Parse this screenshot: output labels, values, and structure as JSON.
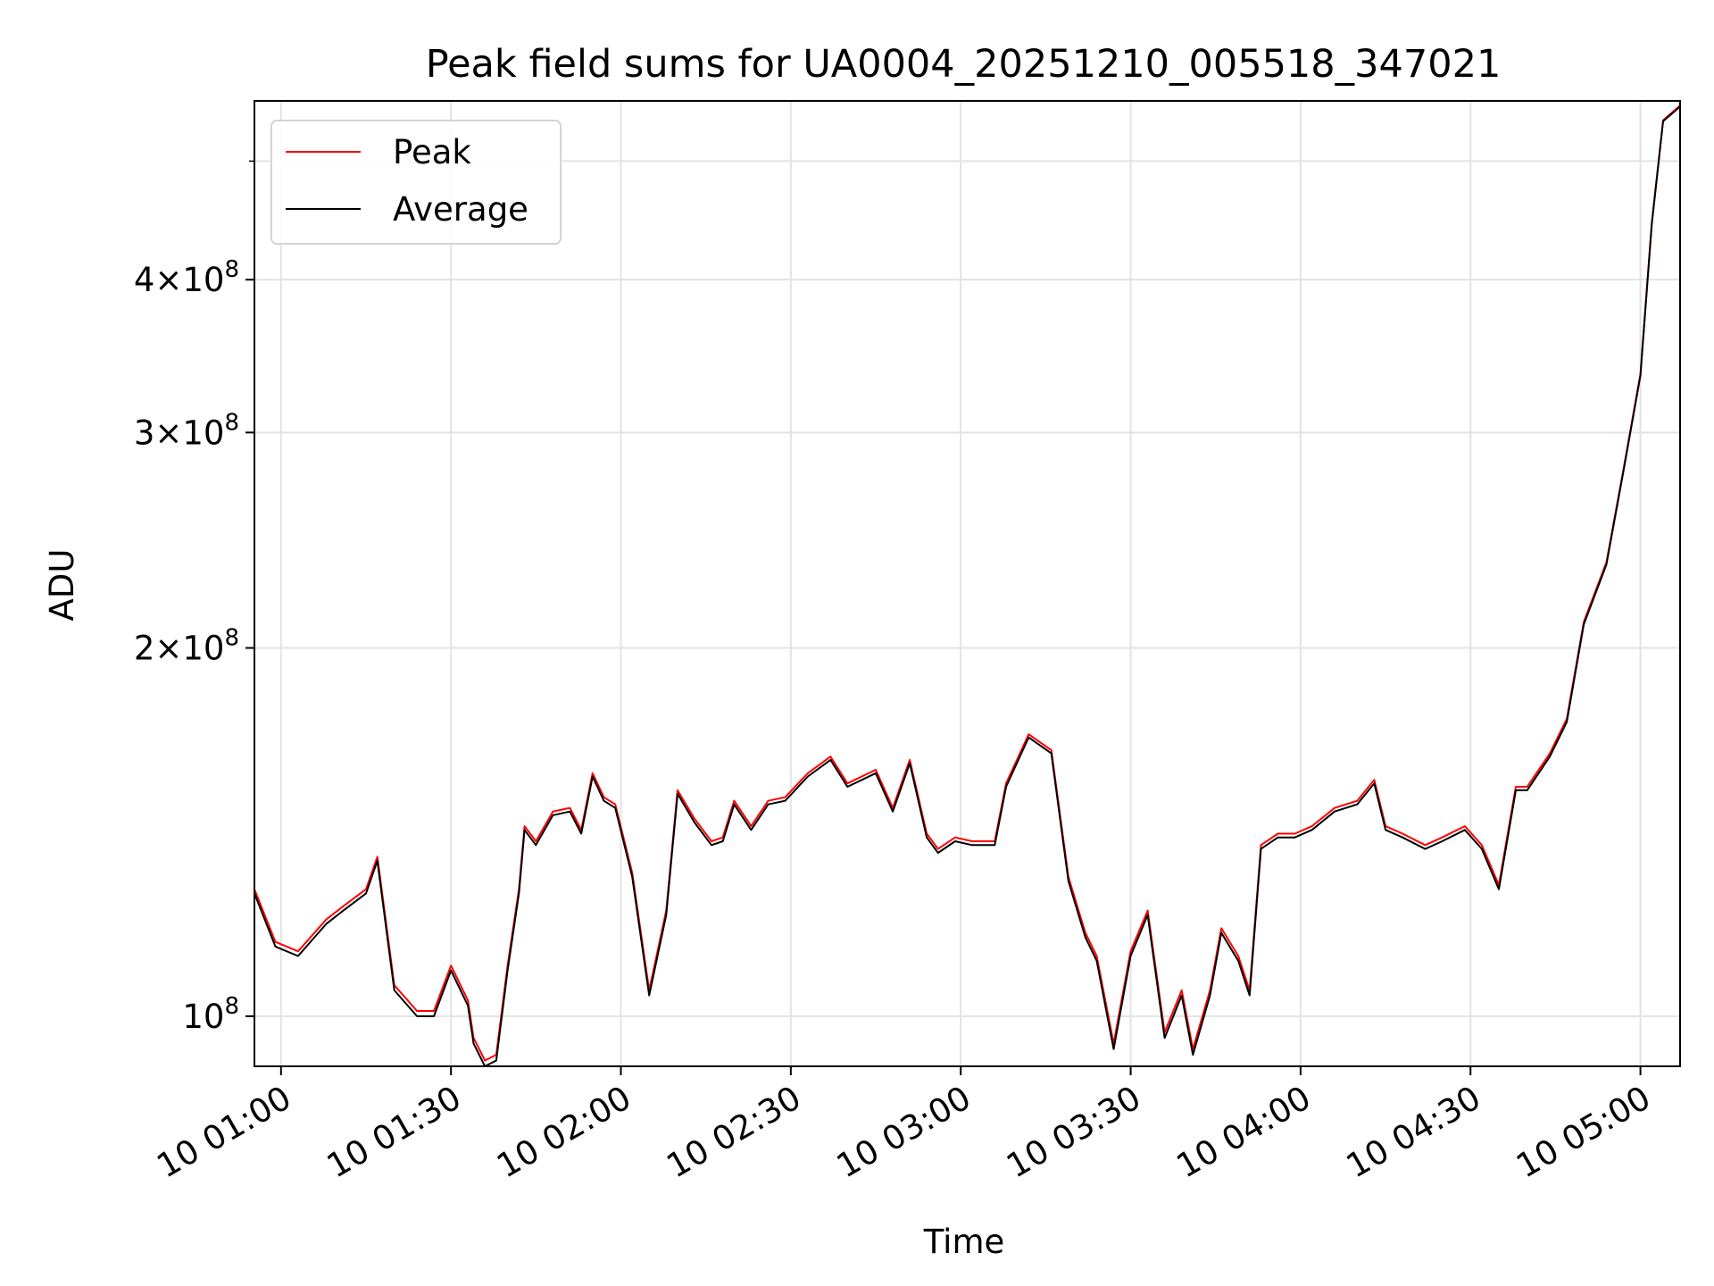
{
  "chart_data": {
    "type": "line",
    "title": "Peak field sums for UA0004_20251210_005518_347021",
    "xlabel": "Time",
    "ylabel": "ADU",
    "y_scale": "log",
    "ylim": [
      91000000,
      560000000
    ],
    "xlim": [
      "10 00:55:18",
      "10 05:07:00"
    ],
    "x_ticks": [
      "10 01:00",
      "10 01:30",
      "10 02:00",
      "10 02:30",
      "10 03:00",
      "10 03:30",
      "10 04:00",
      "10 04:30",
      "10 05:00"
    ],
    "y_ticks": [
      {
        "value": 100000000,
        "mantissa": "",
        "base": "10",
        "exp": "8"
      },
      {
        "value": 200000000,
        "mantissa": "2",
        "base": "10",
        "exp": "8"
      },
      {
        "value": 300000000,
        "mantissa": "3",
        "base": "10",
        "exp": "8"
      },
      {
        "value": 400000000,
        "mantissa": "4",
        "base": "10",
        "exp": "8"
      }
    ],
    "grid": true,
    "legend_position": "top-left",
    "colors": {
      "Peak": "#ff0000",
      "Average": "#000000"
    },
    "x": [
      "10 00:55:18",
      "10 00:59",
      "10 01:03",
      "10 01:08",
      "10 01:11",
      "10 01:15",
      "10 01:17",
      "10 01:20",
      "10 01:24",
      "10 01:27",
      "10 01:30",
      "10 01:33",
      "10 01:34",
      "10 01:36",
      "10 01:38",
      "10 01:40",
      "10 01:42",
      "10 01:43",
      "10 01:45",
      "10 01:48",
      "10 01:51",
      "10 01:53",
      "10 01:55",
      "10 01:57",
      "10 01:59",
      "10 02:02",
      "10 02:05",
      "10 02:08",
      "10 02:10",
      "10 02:13",
      "10 02:16",
      "10 02:18",
      "10 02:20",
      "10 02:23",
      "10 02:26",
      "10 02:29",
      "10 02:33",
      "10 02:37",
      "10 02:40",
      "10 02:45",
      "10 02:48",
      "10 02:51",
      "10 02:54",
      "10 02:56",
      "10 02:59",
      "10 03:02",
      "10 03:06",
      "10 03:08",
      "10 03:12",
      "10 03:16",
      "10 03:19",
      "10 03:22",
      "10 03:24",
      "10 03:27",
      "10 03:30",
      "10 03:33",
      "10 03:36",
      "10 03:39",
      "10 03:41",
      "10 03:44",
      "10 03:46",
      "10 03:49",
      "10 03:51",
      "10 03:53",
      "10 03:56",
      "10 03:59",
      "10 04:02",
      "10 04:06",
      "10 04:10",
      "10 04:13",
      "10 04:15",
      "10 04:18",
      "10 04:22",
      "10 04:25",
      "10 04:29",
      "10 04:32",
      "10 04:35",
      "10 04:38",
      "10 04:40",
      "10 04:44",
      "10 04:47",
      "10 04:50",
      "10 04:54",
      "10 04:57",
      "10 05:00",
      "10 05:02",
      "10 05:04",
      "10 05:07"
    ],
    "series": [
      {
        "name": "Peak",
        "values": [
          127,
          115,
          113,
          120,
          123,
          127,
          135,
          106,
          101,
          101,
          110,
          103,
          96,
          92,
          93,
          110,
          127,
          143,
          139,
          147,
          148,
          142,
          158,
          151,
          149,
          131,
          105,
          122,
          153,
          145,
          139,
          140,
          150,
          143,
          150,
          151,
          158,
          163,
          155,
          159,
          148,
          162,
          141,
          137,
          140,
          139,
          139,
          155,
          170,
          165,
          130,
          117,
          112,
          95,
          113,
          122,
          97,
          105,
          94,
          105,
          118,
          112,
          105,
          138,
          141,
          141,
          143,
          148,
          150,
          156,
          143,
          141,
          138,
          140,
          143,
          138,
          128,
          154,
          154,
          164,
          175,
          210,
          235,
          280,
          335,
          445,
          540,
          555
        ]
      },
      {
        "name": "Average",
        "values": [
          126,
          114,
          112,
          119,
          122,
          126,
          134,
          105,
          100,
          100,
          109,
          102,
          95,
          91,
          92,
          109,
          126,
          142,
          138,
          146,
          147,
          141,
          157,
          150,
          148,
          130,
          104,
          121,
          152,
          144,
          138,
          139,
          149,
          142,
          149,
          150,
          157,
          162,
          154,
          158,
          147,
          161,
          140,
          136,
          139,
          138,
          138,
          154,
          169,
          164,
          129,
          116,
          111,
          94,
          112,
          121,
          96,
          104,
          93,
          104,
          117,
          111,
          104,
          137,
          140,
          140,
          142,
          147,
          149,
          155,
          142,
          140,
          137,
          139,
          142,
          137,
          127,
          153,
          153,
          163,
          174,
          209,
          234,
          279,
          334,
          444,
          539,
          554
        ]
      }
    ],
    "value_unit_note": ""
  }
}
